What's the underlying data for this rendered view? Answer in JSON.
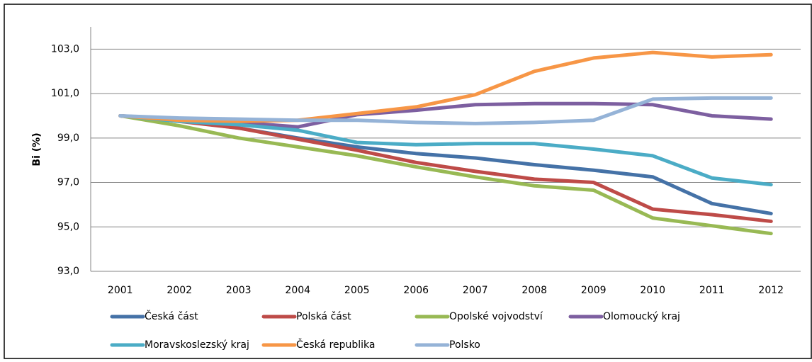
{
  "chart_data": {
    "type": "line",
    "ylabel": "Bi (%)",
    "categories": [
      "2001",
      "2002",
      "2003",
      "2004",
      "2005",
      "2006",
      "2007",
      "2008",
      "2009",
      "2010",
      "2011",
      "2012"
    ],
    "series": [
      {
        "name": "Česká část",
        "color": "#4572a7",
        "values": [
          100,
          99.77,
          99.45,
          99.0,
          98.6,
          98.3,
          98.1,
          97.8,
          97.55,
          97.25,
          96.05,
          95.6
        ]
      },
      {
        "name": "Polská část",
        "color": "#be4b48",
        "values": [
          100,
          99.75,
          99.45,
          98.95,
          98.45,
          97.9,
          97.5,
          97.15,
          97.0,
          95.8,
          95.55,
          95.25
        ]
      },
      {
        "name": "Opolské vojvodství",
        "color": "#98b954",
        "values": [
          100,
          99.55,
          99.0,
          98.6,
          98.2,
          97.7,
          97.25,
          96.85,
          96.65,
          95.4,
          95.05,
          94.7
        ]
      },
      {
        "name": "Olomoucký kraj",
        "color": "#7d5fa0",
        "values": [
          100,
          99.85,
          99.7,
          99.5,
          100.05,
          100.25,
          100.5,
          100.55,
          100.55,
          100.5,
          100.0,
          99.85
        ]
      },
      {
        "name": "Moravskoslezský kraj",
        "color": "#4bacc6",
        "values": [
          100,
          99.75,
          99.6,
          99.35,
          98.8,
          98.7,
          98.75,
          98.75,
          98.5,
          98.2,
          97.2,
          96.9
        ]
      },
      {
        "name": "Česká republika",
        "color": "#f79646",
        "values": [
          100,
          99.8,
          99.75,
          99.8,
          100.1,
          100.4,
          100.95,
          102.0,
          102.6,
          102.85,
          102.65,
          102.75
        ]
      },
      {
        "name": "Polsko",
        "color": "#95b3d7",
        "values": [
          100,
          99.9,
          99.85,
          99.8,
          99.8,
          99.7,
          99.65,
          99.7,
          99.8,
          100.75,
          100.8,
          100.8
        ]
      }
    ],
    "ylim": [
      93,
      104
    ],
    "yticks": [
      {
        "value": 93,
        "label": "93,0"
      },
      {
        "value": 95,
        "label": "95,0"
      },
      {
        "value": 97,
        "label": "97,0"
      },
      {
        "value": 99,
        "label": "99,0"
      },
      {
        "value": 101,
        "label": "101,0"
      },
      {
        "value": 103,
        "label": "103,0"
      }
    ],
    "grid": true,
    "legend": "bottom"
  }
}
